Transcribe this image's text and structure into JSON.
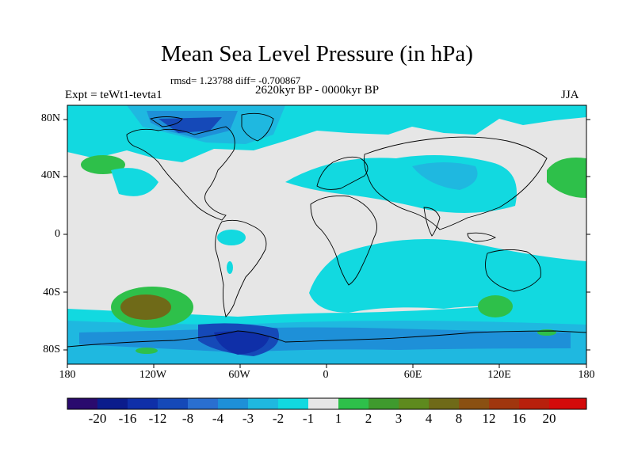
{
  "figure": {
    "title": "Mean Sea Level Pressure (in hPa)",
    "stats_line": "rmsd= 1.23788 diff= -0.700867",
    "left_label": "Expt = teWt1-tevta1",
    "center_label": "2620kyr BP - 0000kyr BP",
    "right_label": "JJA"
  },
  "axes": {
    "lat_labels": [
      "80N",
      "40N",
      "0",
      "40S",
      "80S"
    ],
    "lon_labels": [
      "180",
      "120W",
      "60W",
      "0",
      "60E",
      "120E",
      "180"
    ]
  },
  "colorbar": {
    "colors": [
      "#2a0a6e",
      "#0b1c8c",
      "#0f2fa8",
      "#1549b8",
      "#2a6fd0",
      "#1e90d8",
      "#1fb8e0",
      "#12d9e0",
      "#e6e6e6",
      "#2ec04a",
      "#3f9a2e",
      "#5e8a1e",
      "#6f6a18",
      "#8a5012",
      "#a0360e",
      "#b8200c",
      "#d40a0a"
    ],
    "labels": [
      "-20",
      "-16",
      "-12",
      "-8",
      "-4",
      "-3",
      "-2",
      "-1",
      "1",
      "2",
      "3",
      "4",
      "8",
      "12",
      "16",
      "20"
    ]
  },
  "palette": {
    "land_line": "#000000",
    "neutral": "#e6e6e6",
    "cyan": "#12d9e0",
    "light_blue": "#1fb8e0",
    "mid_blue": "#1e90d8",
    "blue": "#1549b8",
    "dark_blue": "#0f2fa8",
    "green": "#2ec04a",
    "olive": "#6f6a18"
  }
}
